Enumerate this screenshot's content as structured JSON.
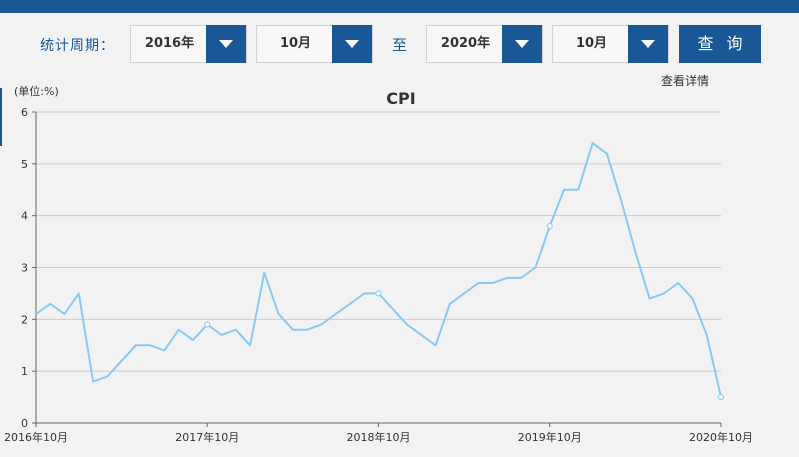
{
  "filter": {
    "label": "统计周期：",
    "start_year": "2016年",
    "start_month": "10月",
    "separator": "至",
    "end_year": "2020年",
    "end_month": "10月",
    "query_label": "查 询"
  },
  "details_link": "查看详情",
  "colors": {
    "accent": "#1a5796",
    "line": "#89caf0",
    "grid": "#cccccc"
  },
  "chart_data": {
    "type": "line",
    "title": "CPI",
    "unit_label": "(单位:%)",
    "xlabel": "",
    "ylabel": "",
    "ylim": [
      0,
      6
    ],
    "yticks": [
      0,
      1,
      2,
      3,
      4,
      5,
      6
    ],
    "grid": true,
    "x_tick_labels": [
      {
        "index": 0,
        "label": "2016年10月"
      },
      {
        "index": 12,
        "label": "2017年10月"
      },
      {
        "index": 24,
        "label": "2018年10月"
      },
      {
        "index": 36,
        "label": "2019年10月"
      },
      {
        "index": 48,
        "label": "2020年10月"
      }
    ],
    "series": [
      {
        "name": "",
        "x": [
          "2016-10",
          "2016-11",
          "2016-12",
          "2017-01",
          "2017-02",
          "2017-03",
          "2017-04",
          "2017-05",
          "2017-06",
          "2017-07",
          "2017-08",
          "2017-09",
          "2017-10",
          "2017-11",
          "2017-12",
          "2018-01",
          "2018-02",
          "2018-03",
          "2018-04",
          "2018-05",
          "2018-06",
          "2018-07",
          "2018-08",
          "2018-09",
          "2018-10",
          "2018-11",
          "2018-12",
          "2019-01",
          "2019-02",
          "2019-03",
          "2019-04",
          "2019-05",
          "2019-06",
          "2019-07",
          "2019-08",
          "2019-09",
          "2019-10",
          "2019-11",
          "2019-12",
          "2020-01",
          "2020-02",
          "2020-03",
          "2020-04",
          "2020-05",
          "2020-06",
          "2020-07",
          "2020-08",
          "2020-09",
          "2020-10"
        ],
        "values": [
          2.1,
          2.3,
          2.1,
          2.5,
          0.8,
          0.9,
          1.2,
          1.5,
          1.5,
          1.4,
          1.8,
          1.6,
          1.9,
          1.7,
          1.8,
          1.5,
          2.9,
          2.1,
          1.8,
          1.8,
          1.9,
          2.1,
          2.3,
          2.5,
          2.5,
          2.2,
          1.9,
          1.7,
          1.5,
          2.3,
          2.5,
          2.7,
          2.7,
          2.8,
          2.8,
          3.0,
          3.8,
          4.5,
          4.5,
          5.4,
          5.2,
          4.3,
          3.3,
          2.4,
          2.5,
          2.7,
          2.4,
          1.7,
          0.5
        ],
        "marked_points": [
          12,
          24,
          36,
          48
        ]
      }
    ]
  }
}
